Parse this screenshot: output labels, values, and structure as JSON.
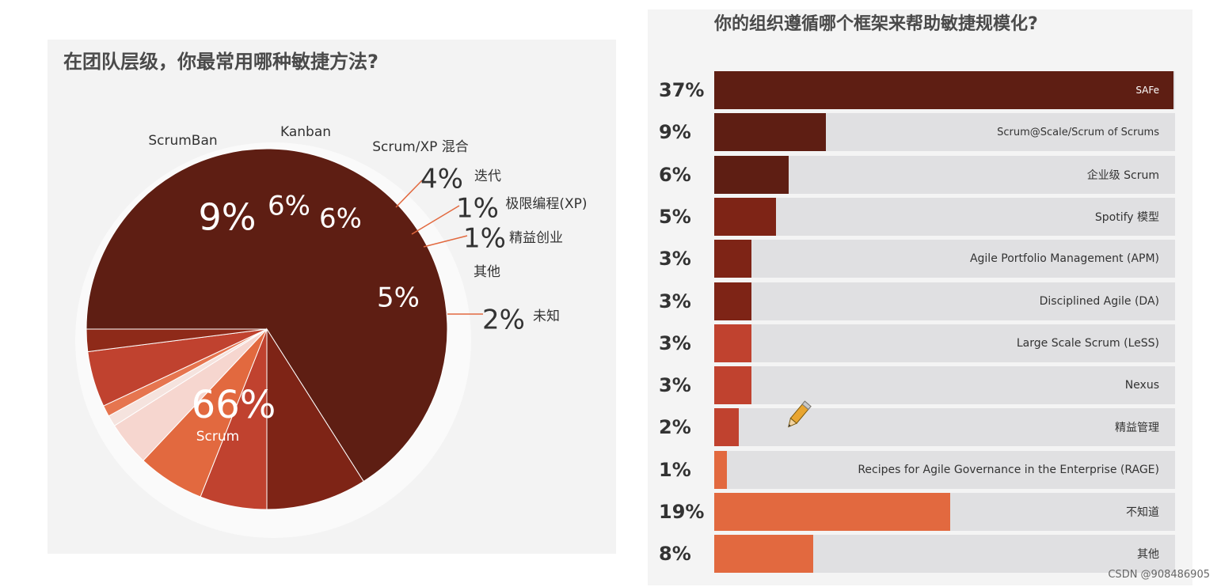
{
  "chart_data": [
    {
      "type": "pie",
      "title": "在团队层级，你最常用哪种敏捷方法?",
      "slices": [
        {
          "label": "Scrum",
          "value": 66,
          "value_label": "66%",
          "color": "#5e1e13"
        },
        {
          "label": "ScrumBan",
          "value": 9,
          "value_label": "9%",
          "color": "#7e2416"
        },
        {
          "label": "Kanban",
          "value": 6,
          "value_label": "6%",
          "color": "#c0422f"
        },
        {
          "label": "Scrum/XP 混合",
          "value": 6,
          "value_label": "6%",
          "color": "#e2693f"
        },
        {
          "label": "迭代",
          "value": 4,
          "value_label": "4%",
          "color": "#f6d6cf"
        },
        {
          "label": "极限编程(XP)",
          "value": 1,
          "value_label": "1%",
          "color": "#f5e3de"
        },
        {
          "label": "精益创业",
          "value": 1,
          "value_label": "1%",
          "color": "#e6754f"
        },
        {
          "label": "其他",
          "value": 5,
          "value_label": "5%",
          "color": "#c0422f"
        },
        {
          "label": "未知",
          "value": 2,
          "value_label": "2%",
          "color": "#8e2a19"
        }
      ]
    },
    {
      "type": "bar",
      "orientation": "horizontal",
      "title": "你的组织遵循哪个框架来帮助敏捷规模化?",
      "xlim": [
        0,
        37
      ],
      "categories": [
        "SAFe",
        "Scrum@Scale/Scrum of Scrums",
        "企业级 Scrum",
        "Spotify 模型",
        "Agile Portfolio Management (APM)",
        "Disciplined Agile (DA)",
        "Large Scale Scrum (LeSS)",
        "Nexus",
        "精益管理",
        "Recipes for Agile Governance in the Enterprise (RAGE)",
        "不知道",
        "其他"
      ],
      "values": [
        37,
        9,
        6,
        5,
        3,
        3,
        3,
        3,
        2,
        1,
        19,
        8
      ],
      "value_labels": [
        "37%",
        "9%",
        "6%",
        "5%",
        "3%",
        "3%",
        "3%",
        "3%",
        "2%",
        "1%",
        "19%",
        "8%"
      ],
      "colors": [
        "#5e1e13",
        "#5e1e13",
        "#5e1e13",
        "#7e2416",
        "#7e2416",
        "#7e2416",
        "#c0422f",
        "#c0422f",
        "#c0422f",
        "#e2693f",
        "#e2693f",
        "#e2693f"
      ]
    }
  ],
  "watermark": "CSDN @908486905"
}
